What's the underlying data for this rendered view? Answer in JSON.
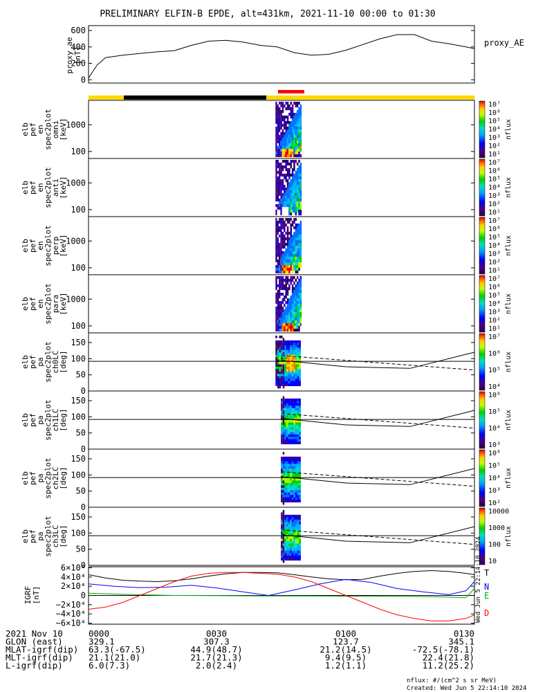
{
  "title": "PRELIMINARY ELFIN-B EPDE, alt=431km, 2021-11-10 00:00 to 01:30",
  "colors": {
    "data_bar_yellow": "#ffd700",
    "data_bar_black": "#000000",
    "data_bar_red": "#ff0000",
    "T": "#000000",
    "N": "#0000ff",
    "E": "#00aa00",
    "D": "#ff0000"
  },
  "chart_data": [
    {
      "type": "line",
      "panel": "proxy_ae",
      "ylabel": [
        "proxy_ae",
        "[nT]"
      ],
      "legend": "proxy_AE",
      "yticks": [
        "600",
        "400",
        "200",
        "0"
      ],
      "ylim": [
        -40,
        660
      ],
      "xlim_min": [
        0,
        90
      ],
      "x": [
        0,
        2,
        4,
        8,
        12,
        16,
        20,
        24,
        28,
        32,
        36,
        40,
        44,
        48,
        52,
        56,
        60,
        64,
        68,
        72,
        76,
        80,
        84,
        88,
        90
      ],
      "y": [
        20,
        180,
        270,
        300,
        320,
        340,
        355,
        420,
        470,
        480,
        460,
        420,
        400,
        330,
        300,
        310,
        360,
        430,
        500,
        550,
        550,
        470,
        440,
        400,
        380
      ]
    },
    {
      "type": "heatmap",
      "panel": "energy_spectrograms",
      "ylabel_prefix": [
        "elb",
        "pef",
        "en"
      ],
      "panels": [
        {
          "ylabel": [
            "spec2plot",
            "omni",
            "[keV]"
          ]
        },
        {
          "ylabel": [
            "spec2plot",
            "anti",
            "[keV]"
          ]
        },
        {
          "ylabel": [
            "spec2plot",
            "perp",
            "[keV]"
          ]
        },
        {
          "ylabel": [
            "spec2plot",
            "para",
            "[keV]"
          ]
        }
      ],
      "yticks": [
        "1000",
        "100"
      ],
      "y_scale": "log",
      "colorbar": {
        "label": "nflux",
        "ticks": [
          "10⁷",
          "10⁶",
          "10⁵",
          "10⁴",
          "10³",
          "10²",
          "10¹"
        ]
      },
      "active_interval_min": [
        43.5,
        49.5
      ]
    },
    {
      "type": "heatmap",
      "panel": "pitch_angle_spectrograms",
      "ylabel_prefix": [
        "elb",
        "pef",
        "pa"
      ],
      "panels": [
        {
          "ylabel": [
            "spec2plot",
            "ch0LC",
            "[deg]"
          ],
          "cb_ticks": [
            "10⁷",
            "10⁶",
            "10⁵",
            "10⁴"
          ]
        },
        {
          "ylabel": [
            "spec2plot",
            "ch1LC",
            "[deg]"
          ],
          "cb_ticks": [
            "10⁶",
            "10⁵",
            "10⁴",
            "10³"
          ]
        },
        {
          "ylabel": [
            "spec2plot",
            "ch2LC",
            "[deg]"
          ],
          "cb_ticks": [
            "10⁶",
            "10⁵",
            "10⁴",
            "10³",
            "10²"
          ]
        },
        {
          "ylabel": [
            "spec2plot",
            "ch3LC",
            "[deg]"
          ],
          "cb_ticks": [
            "10000",
            "1000",
            "100",
            "10"
          ]
        }
      ],
      "yticks": [
        "150",
        "100",
        "50",
        "0"
      ],
      "ylim": [
        0,
        180
      ],
      "colorbar": {
        "label": "nflux"
      },
      "loss_cone_deg": {
        "x": [
          45,
          60,
          75,
          90
        ],
        "solid": [
          95,
          75,
          70,
          120
        ],
        "dashed": [
          110,
          95,
          80,
          65
        ]
      }
    },
    {
      "type": "line",
      "panel": "igrf",
      "ylabel": [
        "IGRF",
        "[nT]"
      ],
      "yticks": [
        "6×10⁴",
        "4×10⁴",
        "2×10⁴",
        "0",
        "−2×10⁴",
        "−4×10⁴",
        "−6×10⁴"
      ],
      "ylim": [
        -60000,
        60000
      ],
      "series": [
        {
          "name": "T",
          "x": [
            0,
            4,
            8,
            12,
            16,
            20,
            24,
            28,
            32,
            36,
            40,
            44,
            48,
            52,
            56,
            60,
            64,
            68,
            72,
            76,
            80,
            84,
            88,
            90
          ],
          "y": [
            45000,
            38000,
            33000,
            31000,
            30000,
            32000,
            36000,
            42000,
            47000,
            50000,
            50000,
            49000,
            45000,
            40000,
            36000,
            34000,
            35000,
            42000,
            48000,
            52000,
            54000,
            52000,
            48000,
            45000
          ]
        },
        {
          "name": "N",
          "x": [
            0,
            6,
            12,
            18,
            24,
            30,
            36,
            42,
            48,
            54,
            60,
            66,
            72,
            78,
            84,
            88,
            90
          ],
          "y": [
            25000,
            20000,
            17000,
            18000,
            22000,
            16000,
            8000,
            0,
            12000,
            25000,
            35000,
            28000,
            15000,
            8000,
            2000,
            10000,
            30000
          ]
        },
        {
          "name": "E",
          "x": [
            0,
            10,
            20,
            30,
            40,
            50,
            60,
            70,
            80,
            88,
            90
          ],
          "y": [
            5000,
            2000,
            0,
            -500,
            -1000,
            -1000,
            -1500,
            -2000,
            -2500,
            -5000,
            15000
          ]
        },
        {
          "name": "D",
          "x": [
            0,
            4,
            8,
            12,
            16,
            20,
            24,
            28,
            32,
            36,
            40,
            44,
            48,
            52,
            56,
            60,
            64,
            68,
            72,
            76,
            80,
            84,
            88,
            90
          ],
          "y": [
            -30000,
            -25000,
            -15000,
            0,
            15000,
            30000,
            42000,
            48000,
            50000,
            50000,
            48000,
            46000,
            40000,
            30000,
            15000,
            0,
            -15000,
            -30000,
            -42000,
            -50000,
            -55000,
            -55000,
            -50000,
            -42000
          ]
        }
      ],
      "side_label": "Wed Jun  5 22:14:10 2024"
    }
  ],
  "xticks": [
    "0000",
    "0030",
    "0100",
    "0130"
  ],
  "footer": {
    "rows": [
      {
        "label": "2021 Nov 10",
        "values": [
          "0000",
          "0030",
          "0100",
          "0130"
        ]
      },
      {
        "label": "GLON (east)",
        "values": [
          "329.1",
          "307.3",
          "123.7",
          "345.1"
        ]
      },
      {
        "label": "MLAT-igrf(dip)",
        "values": [
          "63.3(-67.5)",
          "44.9(48.7)",
          "21.2(14.5)",
          "-72.5(-78.1)"
        ]
      },
      {
        "label": "MLT-igrf(dip)",
        "values": [
          "21.1(21.0)",
          "21.7(21.3)",
          "9.4(9.5)",
          "22.4(21.8)"
        ]
      },
      {
        "label": "L-igrf(dip)",
        "values": [
          "6.0(7.3)",
          "2.0(2.4)",
          "1.2(1.1)",
          "11.2(25.2)"
        ]
      }
    ],
    "units": "nflux: #/(cm^2 s sr MeV)",
    "created": "Created: Wed Jun  5 22:14:10 2024"
  }
}
